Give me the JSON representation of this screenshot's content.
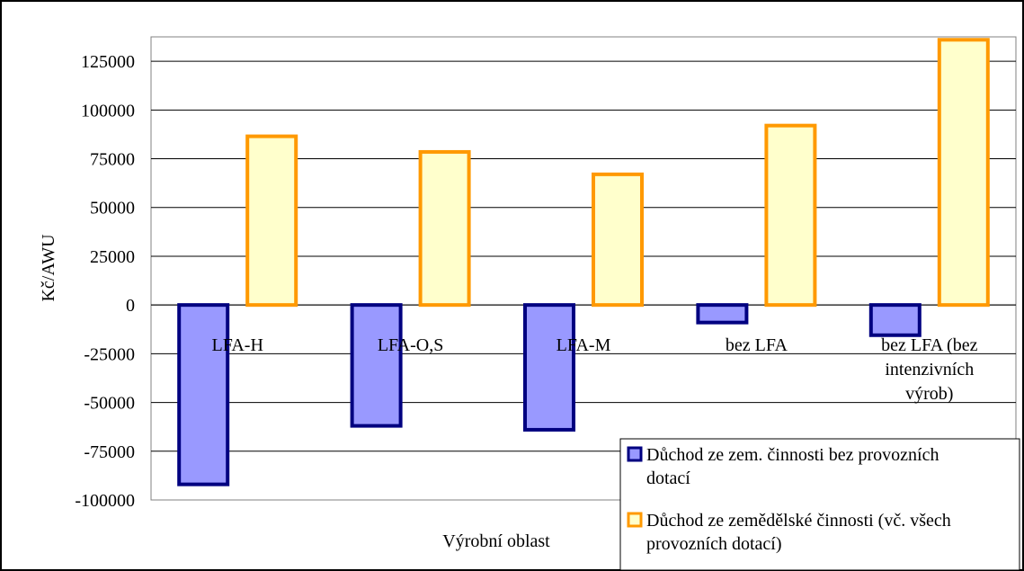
{
  "chart_data": {
    "type": "bar",
    "title": "",
    "xlabel": "Výrobní oblast",
    "ylabel": "Kč/AWU",
    "ylim": [
      -100000,
      137500
    ],
    "yticks": [
      -100000,
      -75000,
      -50000,
      -25000,
      0,
      25000,
      50000,
      75000,
      100000,
      125000
    ],
    "grid": true,
    "legend_position": "bottom-right",
    "categories": [
      [
        "LFA-H"
      ],
      [
        "LFA-O,S"
      ],
      [
        "LFA-M"
      ],
      [
        "bez LFA"
      ],
      [
        "bez LFA (bez",
        "intenzivních",
        "výrob)"
      ]
    ],
    "series": [
      {
        "name": [
          "Důchod ze zem. činnosti bez provozních",
          "dotací"
        ],
        "values": [
          -92000,
          -62000,
          -64000,
          -9000,
          -15500
        ],
        "fill": "#9999ff",
        "stroke": "#000080"
      },
      {
        "name": [
          "Důchod ze zemědělské činnosti (vč. všech",
          "provozních dotací)"
        ],
        "values": [
          86500,
          78500,
          67000,
          92000,
          136000
        ],
        "fill": "#ffffcc",
        "stroke": "#ff9900"
      }
    ]
  }
}
